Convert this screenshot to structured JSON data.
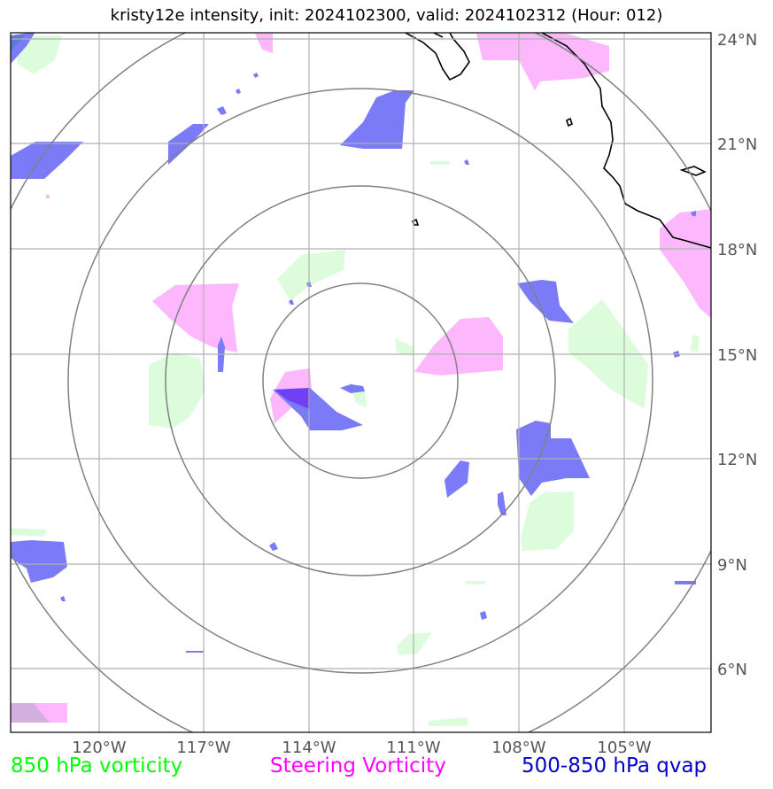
{
  "title": "kristy12e intensity, init: 2024102300, valid: 2024102312 (Hour: 012)",
  "map": {
    "lon_ticks": [
      "120°W",
      "117°W",
      "114°W",
      "111°W",
      "108°W",
      "105°W"
    ],
    "lat_ticks": [
      "24°N",
      "21°N",
      "18°N",
      "15°N",
      "12°N",
      "9°N",
      "6°N"
    ],
    "center": {
      "lon": -112.5,
      "lat": 14.2
    },
    "range_rings": 4
  },
  "legend": [
    {
      "label": "850 hPa vorticity",
      "color": "#00ff00"
    },
    {
      "label": "Steering Vorticity",
      "color": "#ff00ff"
    },
    {
      "label": "500-850 hPa qvap",
      "color": "#0000cc"
    }
  ],
  "colors": {
    "vorticity_850": "#dcfcdc",
    "steering_vorticity": "#fdb8fd",
    "qvap": "#7b7bf7",
    "qvap_dark": "#6b4af5",
    "coastline": "#000000",
    "grid": "#b0b0b0",
    "rings": "#808080"
  }
}
